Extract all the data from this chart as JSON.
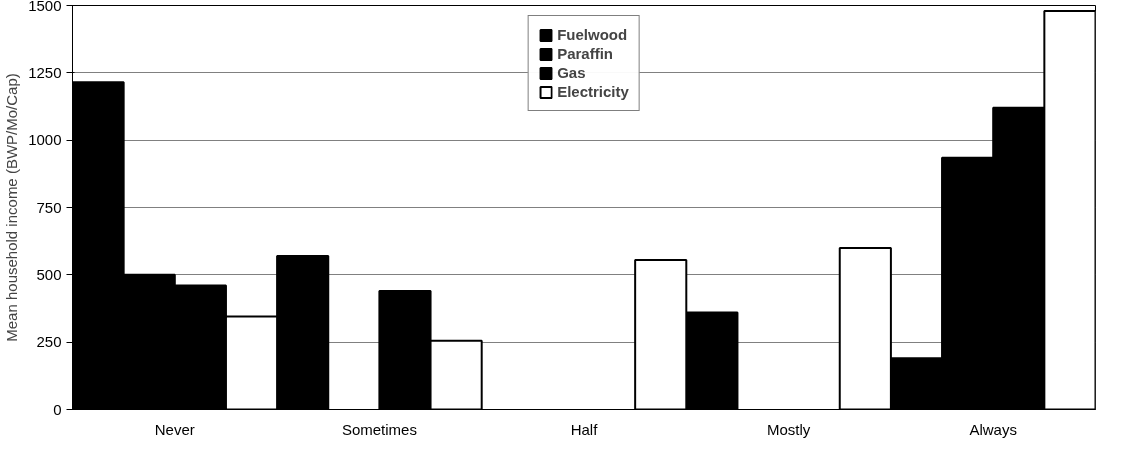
{
  "chart_data": {
    "type": "bar",
    "ylabel": "Mean household income (BWP/Mo/Cap)",
    "categories": [
      "Never",
      "Sometimes",
      "Half",
      "Mostly",
      "Always"
    ],
    "series": [
      {
        "name": "Fuelwood",
        "color": "#000000",
        "values": [
          1215,
          570,
          null,
          360,
          190
        ]
      },
      {
        "name": "Paraffin",
        "color": "#000000",
        "values": [
          500,
          null,
          null,
          null,
          935
        ]
      },
      {
        "name": "Gas",
        "color": "#000000",
        "values": [
          460,
          440,
          null,
          null,
          1120
        ]
      },
      {
        "name": "Electricity",
        "color": "#ffffff",
        "values": [
          345,
          255,
          555,
          600,
          1480
        ]
      }
    ],
    "ylim": [
      0,
      1500
    ],
    "yticks": [
      0,
      250,
      500,
      750,
      1000,
      1250,
      1500
    ],
    "grid": "y",
    "legend": "top"
  }
}
